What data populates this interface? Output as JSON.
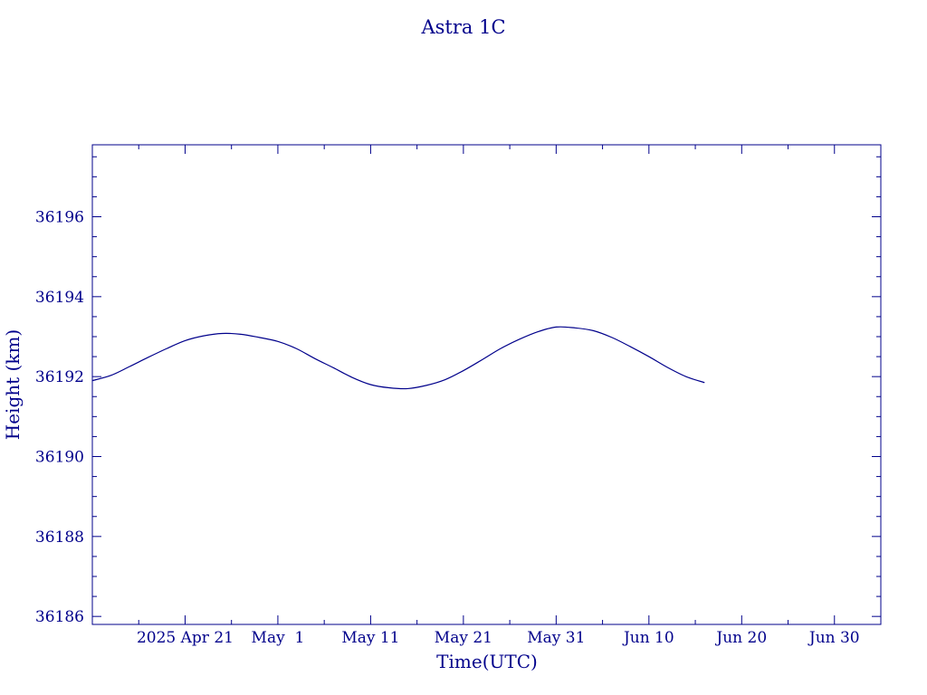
{
  "chart_data": {
    "type": "line",
    "title": "Astra 1C",
    "xlabel": "Time(UTC)",
    "ylabel": "Height (km)",
    "xlim": [
      "2025-04-11",
      "2025-07-05"
    ],
    "ylim": [
      36185.8,
      36197.8
    ],
    "x_ticks": [
      {
        "date": "2025-04-21",
        "label": "2025 Apr 21"
      },
      {
        "date": "2025-05-01",
        "label": "May  1"
      },
      {
        "date": "2025-05-11",
        "label": "May 11"
      },
      {
        "date": "2025-05-21",
        "label": "May 21"
      },
      {
        "date": "2025-05-31",
        "label": "May 31"
      },
      {
        "date": "2025-06-10",
        "label": "Jun 10"
      },
      {
        "date": "2025-06-20",
        "label": "Jun 20"
      },
      {
        "date": "2025-06-30",
        "label": "Jun 30"
      }
    ],
    "y_ticks": [
      {
        "value": 36186,
        "label": "36186"
      },
      {
        "value": 36188,
        "label": "36188"
      },
      {
        "value": 36190,
        "label": "36190"
      },
      {
        "value": 36192,
        "label": "36192"
      },
      {
        "value": 36194,
        "label": "36194"
      },
      {
        "value": 36196,
        "label": "36196"
      }
    ],
    "grid": false,
    "legend": "none",
    "color": "#00008b",
    "series": [
      {
        "x": [
          "2025-04-11",
          "2025-04-13",
          "2025-04-15",
          "2025-04-17",
          "2025-04-19",
          "2025-04-21",
          "2025-04-23",
          "2025-04-25",
          "2025-04-27",
          "2025-04-29",
          "2025-05-01",
          "2025-05-03",
          "2025-05-05",
          "2025-05-07",
          "2025-05-09",
          "2025-05-11",
          "2025-05-13",
          "2025-05-15",
          "2025-05-17",
          "2025-05-19",
          "2025-05-21",
          "2025-05-23",
          "2025-05-25",
          "2025-05-27",
          "2025-05-29",
          "2025-05-31",
          "2025-06-02",
          "2025-06-04",
          "2025-06-06",
          "2025-06-08",
          "2025-06-10",
          "2025-06-12",
          "2025-06-14",
          "2025-06-16"
        ],
        "y": [
          36191.9,
          36192.03,
          36192.25,
          36192.48,
          36192.7,
          36192.9,
          36193.02,
          36193.08,
          36193.06,
          36192.98,
          36192.88,
          36192.7,
          36192.45,
          36192.22,
          36191.98,
          36191.8,
          36191.72,
          36191.7,
          36191.78,
          36191.92,
          36192.15,
          36192.42,
          36192.7,
          36192.93,
          36193.12,
          36193.24,
          36193.22,
          36193.15,
          36192.98,
          36192.75,
          36192.5,
          36192.23,
          36192.0,
          36191.85
        ]
      }
    ]
  }
}
